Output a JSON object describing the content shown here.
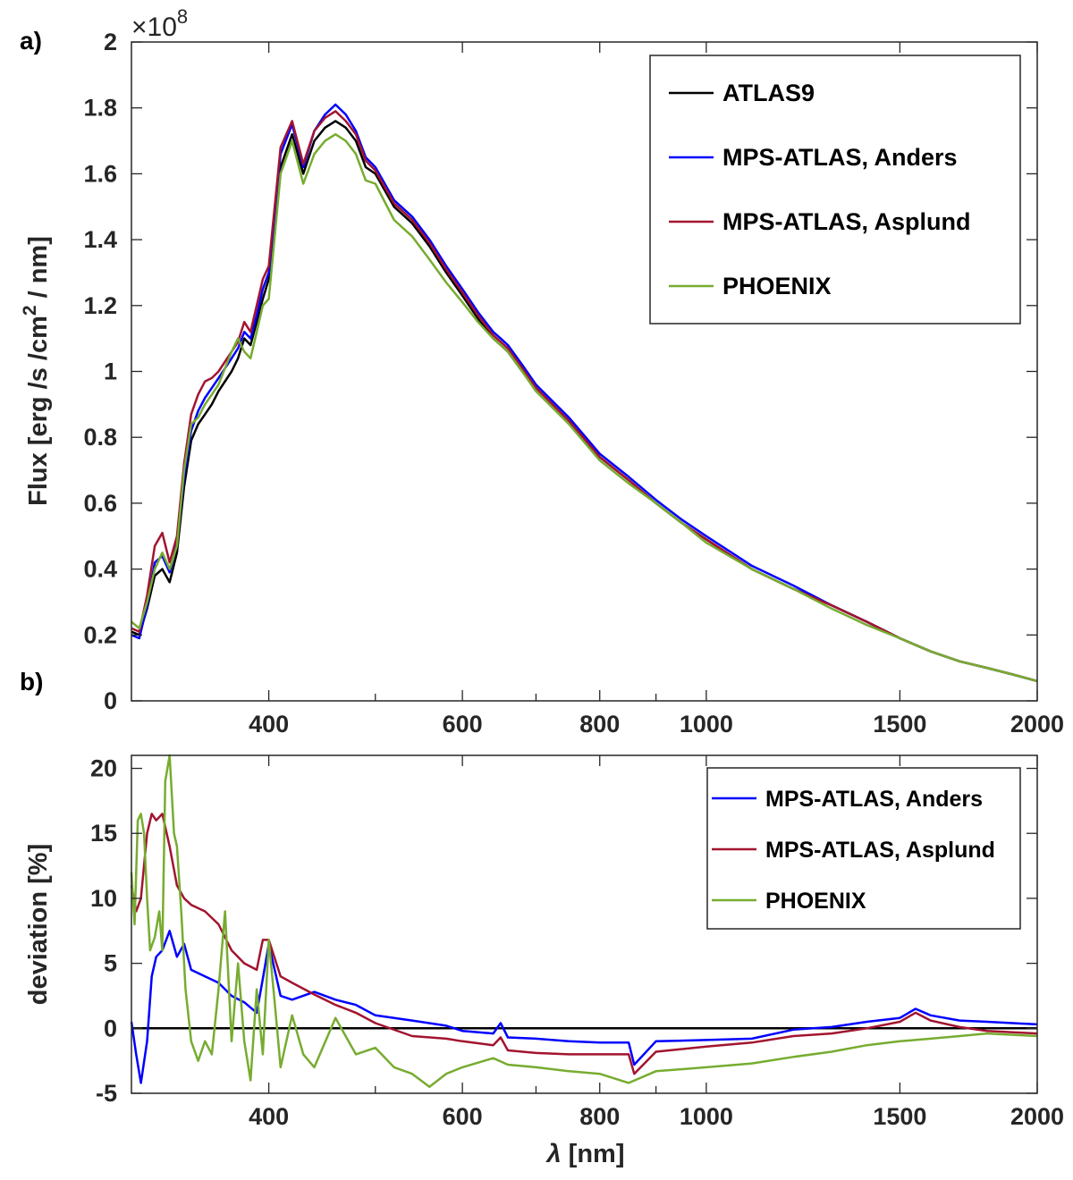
{
  "chart_data": [
    {
      "panel": "a)",
      "type": "line",
      "xscale": "log",
      "xlim": [
        300,
        2000
      ],
      "ylim": [
        0,
        2
      ],
      "y_multiplier": "×10",
      "y_exponent": "8",
      "ylabel": "Flux [erg /s /cm",
      "ylabel_sup": "2",
      "ylabel_tail": " / nm]",
      "xlabel": "",
      "xticks": [
        400,
        600,
        800,
        1000,
        1500,
        2000
      ],
      "xticklabels": [
        "400",
        "600",
        "800",
        "1000",
        "1500",
        "2000"
      ],
      "yticks": [
        0,
        0.2,
        0.4,
        0.6,
        0.8,
        1,
        1.2,
        1.4,
        1.6,
        1.8,
        2
      ],
      "yticklabels": [
        "0",
        "0.2",
        "0.4",
        "0.6",
        "0.8",
        "1",
        "1.2",
        "1.4",
        "1.6",
        "1.8",
        "2"
      ],
      "legend_position": "top-right",
      "series": [
        {
          "name": "ATLAS9",
          "color": "#000000",
          "x": [
            300,
            305,
            310,
            315,
            320,
            325,
            330,
            335,
            340,
            345,
            350,
            355,
            360,
            370,
            375,
            380,
            385,
            390,
            395,
            400,
            410,
            420,
            430,
            440,
            450,
            460,
            470,
            480,
            490,
            500,
            520,
            540,
            560,
            580,
            600,
            620,
            640,
            650,
            660,
            680,
            700,
            750,
            800,
            850,
            900,
            950,
            1000,
            1100,
            1200,
            1300,
            1400,
            1500,
            1600,
            1700,
            1800,
            1900,
            2000
          ],
          "y": [
            0.21,
            0.2,
            0.28,
            0.38,
            0.4,
            0.36,
            0.45,
            0.65,
            0.79,
            0.84,
            0.87,
            0.9,
            0.94,
            1.0,
            1.04,
            1.1,
            1.08,
            1.15,
            1.22,
            1.28,
            1.62,
            1.72,
            1.6,
            1.7,
            1.74,
            1.76,
            1.74,
            1.7,
            1.62,
            1.6,
            1.5,
            1.45,
            1.38,
            1.3,
            1.23,
            1.16,
            1.1,
            1.08,
            1.06,
            1.0,
            0.95,
            0.85,
            0.74,
            0.67,
            0.6,
            0.54,
            0.49,
            0.4,
            0.34,
            0.29,
            0.24,
            0.19,
            0.15,
            0.12,
            0.1,
            0.08,
            0.06
          ]
        },
        {
          "name": "MPS-ATLAS, Anders",
          "color": "#0000ff",
          "x": [
            300,
            305,
            310,
            315,
            320,
            325,
            330,
            335,
            340,
            345,
            350,
            355,
            360,
            370,
            375,
            380,
            385,
            390,
            395,
            400,
            410,
            420,
            430,
            440,
            450,
            460,
            470,
            480,
            490,
            500,
            520,
            540,
            560,
            580,
            600,
            620,
            640,
            650,
            660,
            680,
            700,
            750,
            800,
            850,
            900,
            950,
            1000,
            1100,
            1200,
            1300,
            1400,
            1500,
            1600,
            1700,
            1800,
            1900,
            2000
          ],
          "y": [
            0.2,
            0.19,
            0.29,
            0.42,
            0.44,
            0.39,
            0.48,
            0.68,
            0.82,
            0.88,
            0.92,
            0.95,
            0.98,
            1.04,
            1.07,
            1.12,
            1.1,
            1.17,
            1.25,
            1.3,
            1.66,
            1.75,
            1.62,
            1.73,
            1.78,
            1.81,
            1.78,
            1.73,
            1.65,
            1.62,
            1.52,
            1.47,
            1.4,
            1.32,
            1.25,
            1.18,
            1.12,
            1.1,
            1.08,
            1.02,
            0.96,
            0.86,
            0.75,
            0.68,
            0.61,
            0.55,
            0.5,
            0.41,
            0.35,
            0.29,
            0.24,
            0.19,
            0.15,
            0.12,
            0.1,
            0.08,
            0.06
          ]
        },
        {
          "name": "MPS-ATLAS, Asplund",
          "color": "#a2142f",
          "x": [
            300,
            305,
            310,
            315,
            320,
            325,
            330,
            335,
            340,
            345,
            350,
            355,
            360,
            370,
            375,
            380,
            385,
            390,
            395,
            400,
            410,
            420,
            430,
            440,
            450,
            460,
            470,
            480,
            490,
            500,
            520,
            540,
            560,
            580,
            600,
            620,
            640,
            650,
            660,
            680,
            700,
            750,
            800,
            850,
            900,
            950,
            1000,
            1100,
            1200,
            1300,
            1400,
            1500,
            1600,
            1700,
            1800,
            1900,
            2000
          ],
          "y": [
            0.22,
            0.21,
            0.32,
            0.47,
            0.51,
            0.42,
            0.5,
            0.72,
            0.87,
            0.93,
            0.97,
            0.98,
            1.0,
            1.06,
            1.09,
            1.15,
            1.12,
            1.2,
            1.28,
            1.32,
            1.68,
            1.76,
            1.63,
            1.73,
            1.77,
            1.79,
            1.76,
            1.72,
            1.64,
            1.61,
            1.51,
            1.46,
            1.39,
            1.31,
            1.24,
            1.17,
            1.11,
            1.09,
            1.07,
            1.01,
            0.95,
            0.85,
            0.74,
            0.67,
            0.6,
            0.54,
            0.49,
            0.4,
            0.34,
            0.29,
            0.24,
            0.19,
            0.15,
            0.12,
            0.1,
            0.08,
            0.06
          ]
        },
        {
          "name": "PHOENIX",
          "color": "#77ac30",
          "x": [
            300,
            305,
            310,
            315,
            320,
            325,
            330,
            335,
            340,
            345,
            350,
            355,
            360,
            370,
            375,
            380,
            385,
            390,
            395,
            400,
            410,
            420,
            430,
            440,
            450,
            460,
            470,
            480,
            490,
            500,
            520,
            540,
            560,
            580,
            600,
            620,
            640,
            650,
            660,
            680,
            700,
            750,
            800,
            850,
            900,
            950,
            1000,
            1100,
            1200,
            1300,
            1400,
            1500,
            1600,
            1700,
            1800,
            1900,
            2000
          ],
          "y": [
            0.24,
            0.22,
            0.3,
            0.4,
            0.45,
            0.4,
            0.47,
            0.7,
            0.84,
            0.86,
            0.9,
            0.93,
            0.96,
            1.06,
            1.1,
            1.06,
            1.04,
            1.12,
            1.2,
            1.22,
            1.6,
            1.7,
            1.57,
            1.66,
            1.7,
            1.72,
            1.7,
            1.66,
            1.58,
            1.57,
            1.46,
            1.41,
            1.34,
            1.27,
            1.21,
            1.15,
            1.1,
            1.08,
            1.06,
            1.0,
            0.94,
            0.84,
            0.73,
            0.66,
            0.6,
            0.54,
            0.48,
            0.4,
            0.34,
            0.28,
            0.23,
            0.19,
            0.15,
            0.12,
            0.1,
            0.08,
            0.06
          ]
        }
      ]
    },
    {
      "panel": "b)",
      "type": "line",
      "xscale": "log",
      "xlim": [
        300,
        2000
      ],
      "ylim": [
        -5,
        21
      ],
      "ylabel": "deviation [%]",
      "xlabel_symbol": "λ",
      "xlabel_rest": " [nm]",
      "xticks": [
        400,
        600,
        800,
        1000,
        1500,
        2000
      ],
      "xticklabels": [
        "400",
        "600",
        "800",
        "1000",
        "1500",
        "2000"
      ],
      "yticks": [
        -5,
        0,
        5,
        10,
        15,
        20
      ],
      "yticklabels": [
        "-5",
        "0",
        "5",
        "10",
        "15",
        "20"
      ],
      "zero_line": true,
      "legend_position": "top-right",
      "series": [
        {
          "name": "MPS-ATLAS, Anders",
          "color": "#0000ff",
          "x": [
            300,
            303,
            306,
            310,
            313,
            316,
            320,
            325,
            330,
            335,
            340,
            350,
            360,
            370,
            380,
            390,
            395,
            400,
            410,
            420,
            440,
            460,
            480,
            500,
            540,
            580,
            600,
            640,
            650,
            660,
            700,
            750,
            800,
            850,
            860,
            900,
            1000,
            1100,
            1200,
            1300,
            1400,
            1500,
            1550,
            1600,
            1700,
            1800,
            1900,
            2000
          ],
          "y": [
            0.5,
            -2,
            -4.2,
            -1,
            4,
            5.5,
            6,
            7.5,
            5.5,
            6.5,
            4.5,
            4,
            3.5,
            2.5,
            2,
            1.2,
            3.8,
            6.5,
            2.5,
            2.2,
            2.8,
            2.2,
            1.8,
            1.0,
            0.6,
            0.2,
            -0.2,
            -0.4,
            0.4,
            -0.7,
            -0.8,
            -1.0,
            -1.1,
            -1.1,
            -2.8,
            -1.0,
            -0.9,
            -0.8,
            -0.1,
            0.1,
            0.5,
            0.8,
            1.5,
            1.0,
            0.6,
            0.5,
            0.4,
            0.3
          ]
        },
        {
          "name": "MPS-ATLAS, Asplund",
          "color": "#a2142f",
          "x": [
            300,
            303,
            306,
            310,
            313,
            316,
            320,
            325,
            330,
            335,
            340,
            350,
            360,
            370,
            380,
            390,
            395,
            400,
            410,
            420,
            440,
            460,
            480,
            500,
            540,
            580,
            600,
            640,
            650,
            660,
            700,
            750,
            800,
            850,
            860,
            900,
            1000,
            1100,
            1200,
            1300,
            1400,
            1500,
            1550,
            1600,
            1700,
            1800,
            1900,
            2000
          ],
          "y": [
            11,
            9,
            10,
            15,
            16.5,
            16,
            16.5,
            14,
            11,
            10,
            9.5,
            9,
            8,
            6,
            5,
            4.5,
            6.8,
            6.8,
            4,
            3.5,
            2.6,
            1.8,
            1.2,
            0.4,
            -0.6,
            -0.8,
            -1.0,
            -1.3,
            -0.7,
            -1.7,
            -1.9,
            -2.0,
            -2.0,
            -2.0,
            -3.5,
            -1.8,
            -1.4,
            -1.1,
            -0.6,
            -0.4,
            0.0,
            0.5,
            1.2,
            0.6,
            0.1,
            -0.2,
            -0.3,
            -0.4
          ]
        },
        {
          "name": "PHOENIX",
          "color": "#77ac30",
          "x": [
            300,
            302,
            304,
            306,
            308,
            310,
            312,
            315,
            318,
            320,
            322,
            325,
            328,
            330,
            333,
            336,
            340,
            345,
            350,
            355,
            360,
            365,
            370,
            375,
            380,
            385,
            390,
            395,
            400,
            405,
            410,
            420,
            430,
            440,
            460,
            480,
            500,
            520,
            540,
            560,
            580,
            600,
            640,
            660,
            700,
            750,
            800,
            850,
            900,
            1000,
            1100,
            1200,
            1300,
            1400,
            1500,
            1600,
            1700,
            1800,
            1900,
            2000
          ],
          "y": [
            12,
            8,
            16,
            16.5,
            15,
            10,
            6,
            7,
            9,
            6,
            19,
            21,
            15,
            14,
            9,
            3,
            -1,
            -2.5,
            -1,
            -2,
            3,
            9,
            -1,
            5,
            -1,
            -4,
            3,
            -2,
            6.8,
            2,
            -3,
            1,
            -2,
            -3,
            0.8,
            -2,
            -1.5,
            -3,
            -3.5,
            -4.5,
            -3.5,
            -3,
            -2.3,
            -2.8,
            -3,
            -3.3,
            -3.5,
            -4.2,
            -3.3,
            -3.0,
            -2.7,
            -2.2,
            -1.8,
            -1.3,
            -1.0,
            -0.8,
            -0.6,
            -0.4,
            -0.5,
            -0.6
          ]
        }
      ]
    }
  ]
}
